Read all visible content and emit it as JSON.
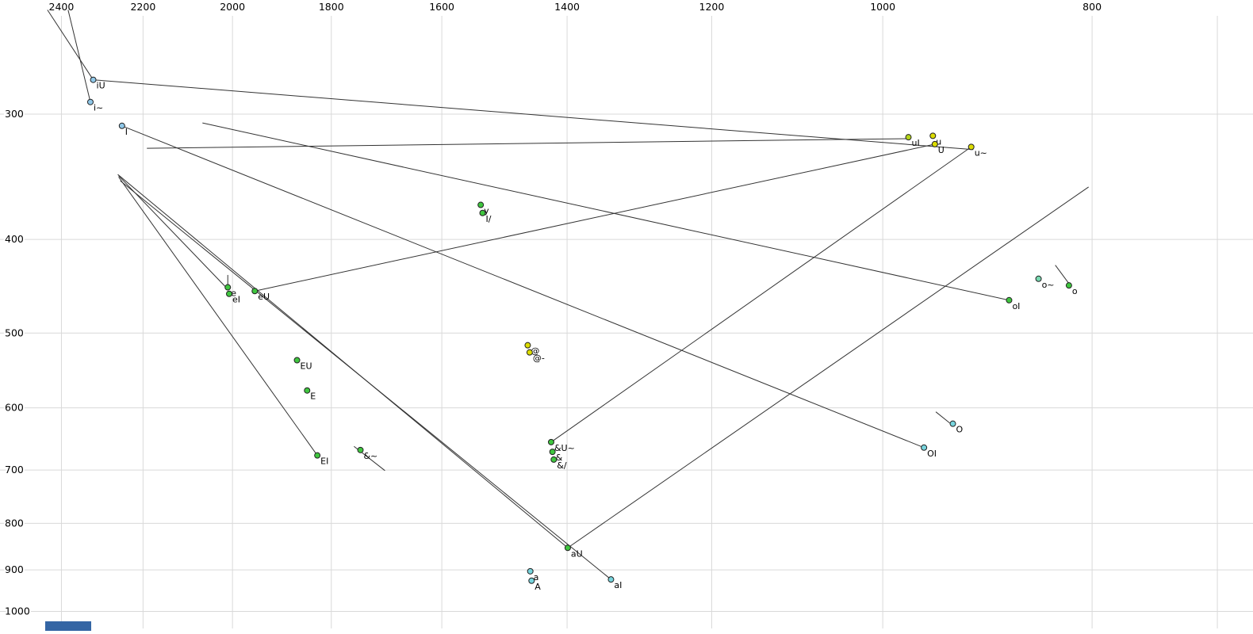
{
  "chart_data": {
    "type": "scatter",
    "title": "",
    "description": "Vowel formant plot: F2 (Hz, log scale, decreasing left-to-right) on top axis vs F1 (Hz, increasing downward) on left axis, with vowel/diphthong points and trajectory lines",
    "x_axis": {
      "position": "top",
      "scale": "log",
      "reversed": true,
      "ticks": [
        2400,
        2200,
        2000,
        1800,
        1600,
        1400,
        1200,
        1000,
        800
      ],
      "unlabeled_gridlines": [
        700
      ]
    },
    "y_axis": {
      "position": "left",
      "scale": "log-like",
      "increases_downward": true,
      "ticks": [
        300,
        400,
        500,
        600,
        700,
        800,
        900,
        1000
      ]
    },
    "grid": true,
    "points": [
      {
        "label": "iU",
        "f2": 2320,
        "f1": 278,
        "color": "blue"
      },
      {
        "label": "i~",
        "f2": 2327,
        "f1": 292,
        "color": "blue"
      },
      {
        "label": "I",
        "f2": 2250,
        "f1": 308,
        "color": "blue"
      },
      {
        "label": "uI",
        "f2": 973,
        "f1": 316,
        "color": "yellowgreen"
      },
      {
        "label": "u",
        "f2": 948,
        "f1": 315,
        "color": "yellow"
      },
      {
        "label": "U",
        "f2": 946,
        "f1": 321,
        "color": "yellow"
      },
      {
        "label": "u~",
        "f2": 910,
        "f1": 323,
        "color": "yellow"
      },
      {
        "label": "y",
        "f2": 1535,
        "f1": 369,
        "color": "green"
      },
      {
        "label": "I/",
        "f2": 1532,
        "f1": 376,
        "color": "green"
      },
      {
        "label": "e",
        "f2": 2010,
        "f1": 448,
        "color": "green"
      },
      {
        "label": "eI",
        "f2": 2007,
        "f1": 455,
        "color": "green"
      },
      {
        "label": "eU",
        "f2": 1953,
        "f1": 452,
        "color": "green"
      },
      {
        "label": "o~",
        "f2": 847,
        "f1": 439,
        "color": "teal"
      },
      {
        "label": "o",
        "f2": 820,
        "f1": 446,
        "color": "green"
      },
      {
        "label": "oI",
        "f2": 874,
        "f1": 462,
        "color": "green"
      },
      {
        "label": "@",
        "f2": 1460,
        "f1": 515,
        "color": "yellow"
      },
      {
        "label": "@-",
        "f2": 1457,
        "f1": 524,
        "color": "yellow"
      },
      {
        "label": "EU",
        "f2": 1867,
        "f1": 534,
        "color": "green"
      },
      {
        "label": "E",
        "f2": 1847,
        "f1": 575,
        "color": "green"
      },
      {
        "label": "O",
        "f2": 928,
        "f1": 624,
        "color": "cyan"
      },
      {
        "label": "&U~",
        "f2": 1424,
        "f1": 653,
        "color": "green"
      },
      {
        "label": "&",
        "f2": 1422,
        "f1": 669,
        "color": "green"
      },
      {
        "label": "&/",
        "f2": 1420,
        "f1": 682,
        "color": "green"
      },
      {
        "label": "OI",
        "f2": 957,
        "f1": 662,
        "color": "cyan"
      },
      {
        "label": "&~",
        "f2": 1745,
        "f1": 666,
        "color": "green"
      },
      {
        "label": "EI",
        "f2": 1827,
        "f1": 675,
        "color": "green"
      },
      {
        "label": "aU",
        "f2": 1399,
        "f1": 851,
        "color": "green"
      },
      {
        "label": "a",
        "f2": 1456,
        "f1": 903,
        "color": "cyan"
      },
      {
        "label": "A",
        "f2": 1454,
        "f1": 925,
        "color": "cyan"
      },
      {
        "label": "aI",
        "f2": 1336,
        "f1": 922,
        "color": "cyan"
      }
    ],
    "trajectories": [
      {
        "from": [
          2436,
          239
        ],
        "to": [
          2320,
          278
        ]
      },
      {
        "from": [
          2383,
          239
        ],
        "to": [
          2327,
          292
        ]
      },
      {
        "from": [
          2320,
          278
        ],
        "to": [
          908,
          325
        ]
      },
      {
        "from": [
          2191,
          324
        ],
        "to": [
          973,
          317
        ]
      },
      {
        "from": [
          2065,
          306
        ],
        "to": [
          874,
          462
        ]
      },
      {
        "from": [
          2258,
          345
        ],
        "to": [
          2010,
          450
        ]
      },
      {
        "from": [
          2258,
          346
        ],
        "to": [
          1827,
          675
        ]
      },
      {
        "from": [
          2254,
          349
        ],
        "to": [
          1336,
          922
        ]
      },
      {
        "from": [
          2260,
          344
        ],
        "to": [
          1399,
          851
        ]
      },
      {
        "from": [
          1953,
          452
        ],
        "to": [
          946,
          321
        ]
      },
      {
        "from": [
          1424,
          653
        ],
        "to": [
          910,
          323
        ]
      },
      {
        "from": [
          1399,
          851
        ],
        "to": [
          803,
          354
        ]
      },
      {
        "from": [
          957,
          662
        ],
        "to": [
          2250,
          308
        ]
      },
      {
        "from": [
          832,
          425
        ],
        "to": [
          820,
          444
        ]
      },
      {
        "from": [
          945,
          606
        ],
        "to": [
          931,
          623
        ]
      },
      {
        "from": [
          1757,
          660
        ],
        "to": [
          1700,
          701
        ]
      },
      {
        "from": [
          2010,
          435
        ],
        "to": [
          2010,
          446
        ]
      }
    ],
    "colors": {
      "blue": "#8fc7e8",
      "cyan": "#77d4dd",
      "teal": "#77d8b0",
      "green": "#3fc63f",
      "yellow": "#dcdc00",
      "yellowgreen": "#b4d41a",
      "dot_outline": "#222222",
      "line": "#333333",
      "grid": "#d9d9d9",
      "text": "#000000"
    }
  },
  "decorations": {
    "bottom_bar_color": "#3465a4"
  }
}
